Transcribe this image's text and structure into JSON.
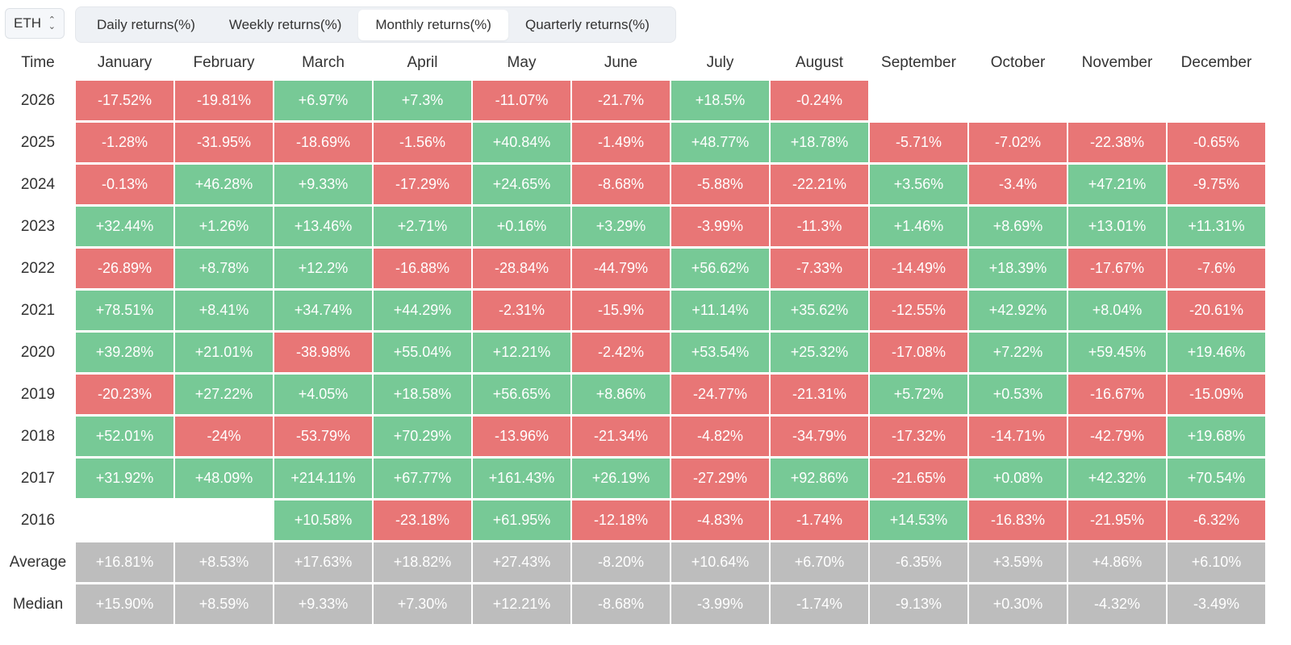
{
  "asset_selector": {
    "value": "ETH"
  },
  "tabs": [
    {
      "label": "Daily returns(%)",
      "active": false
    },
    {
      "label": "Weekly returns(%)",
      "active": false
    },
    {
      "label": "Monthly returns(%)",
      "active": true
    },
    {
      "label": "Quarterly returns(%)",
      "active": false
    }
  ],
  "table": {
    "corner_label": "Time",
    "months": [
      "January",
      "February",
      "March",
      "April",
      "May",
      "June",
      "July",
      "August",
      "September",
      "October",
      "November",
      "December"
    ],
    "rows": [
      {
        "label": "2026",
        "values": [
          "-17.52%",
          "-19.81%",
          "+6.97%",
          "+7.3%",
          "-11.07%",
          "-21.7%",
          "+18.5%",
          "-0.24%",
          "",
          "",
          "",
          ""
        ]
      },
      {
        "label": "2025",
        "values": [
          "-1.28%",
          "-31.95%",
          "-18.69%",
          "-1.56%",
          "+40.84%",
          "-1.49%",
          "+48.77%",
          "+18.78%",
          "-5.71%",
          "-7.02%",
          "-22.38%",
          "-0.65%"
        ]
      },
      {
        "label": "2024",
        "values": [
          "-0.13%",
          "+46.28%",
          "+9.33%",
          "-17.29%",
          "+24.65%",
          "-8.68%",
          "-5.88%",
          "-22.21%",
          "+3.56%",
          "-3.4%",
          "+47.21%",
          "-9.75%"
        ]
      },
      {
        "label": "2023",
        "values": [
          "+32.44%",
          "+1.26%",
          "+13.46%",
          "+2.71%",
          "+0.16%",
          "+3.29%",
          "-3.99%",
          "-11.3%",
          "+1.46%",
          "+8.69%",
          "+13.01%",
          "+11.31%"
        ]
      },
      {
        "label": "2022",
        "values": [
          "-26.89%",
          "+8.78%",
          "+12.2%",
          "-16.88%",
          "-28.84%",
          "-44.79%",
          "+56.62%",
          "-7.33%",
          "-14.49%",
          "+18.39%",
          "-17.67%",
          "-7.6%"
        ]
      },
      {
        "label": "2021",
        "values": [
          "+78.51%",
          "+8.41%",
          "+34.74%",
          "+44.29%",
          "-2.31%",
          "-15.9%",
          "+11.14%",
          "+35.62%",
          "-12.55%",
          "+42.92%",
          "+8.04%",
          "-20.61%"
        ]
      },
      {
        "label": "2020",
        "values": [
          "+39.28%",
          "+21.01%",
          "-38.98%",
          "+55.04%",
          "+12.21%",
          "-2.42%",
          "+53.54%",
          "+25.32%",
          "-17.08%",
          "+7.22%",
          "+59.45%",
          "+19.46%"
        ]
      },
      {
        "label": "2019",
        "values": [
          "-20.23%",
          "+27.22%",
          "+4.05%",
          "+18.58%",
          "+56.65%",
          "+8.86%",
          "-24.77%",
          "-21.31%",
          "+5.72%",
          "+0.53%",
          "-16.67%",
          "-15.09%"
        ]
      },
      {
        "label": "2018",
        "values": [
          "+52.01%",
          "-24%",
          "-53.79%",
          "+70.29%",
          "-13.96%",
          "-21.34%",
          "-4.82%",
          "-34.79%",
          "-17.32%",
          "-14.71%",
          "-42.79%",
          "+19.68%"
        ]
      },
      {
        "label": "2017",
        "values": [
          "+31.92%",
          "+48.09%",
          "+214.11%",
          "+67.77%",
          "+161.43%",
          "+26.19%",
          "-27.29%",
          "+92.86%",
          "-21.65%",
          "+0.08%",
          "+42.32%",
          "+70.54%"
        ]
      },
      {
        "label": "2016",
        "values": [
          "",
          "",
          "+10.58%",
          "-23.18%",
          "+61.95%",
          "-12.18%",
          "-4.83%",
          "-1.74%",
          "+14.53%",
          "-16.83%",
          "-21.95%",
          "-6.32%"
        ]
      }
    ],
    "stats": [
      {
        "label": "Average",
        "values": [
          "+16.81%",
          "+8.53%",
          "+17.63%",
          "+18.82%",
          "+27.43%",
          "-8.20%",
          "+10.64%",
          "+6.70%",
          "-6.35%",
          "+3.59%",
          "+4.86%",
          "+6.10%"
        ]
      },
      {
        "label": "Median",
        "values": [
          "+15.90%",
          "+8.59%",
          "+9.33%",
          "+7.30%",
          "+12.21%",
          "-8.68%",
          "-3.99%",
          "-1.74%",
          "-9.13%",
          "+0.30%",
          "-4.32%",
          "-3.49%"
        ]
      }
    ]
  },
  "colors": {
    "positive": "#77c996",
    "negative": "#e87676",
    "stat": "#bdbdbd"
  },
  "icons": {
    "selector": "chevron-up-down-icon"
  }
}
